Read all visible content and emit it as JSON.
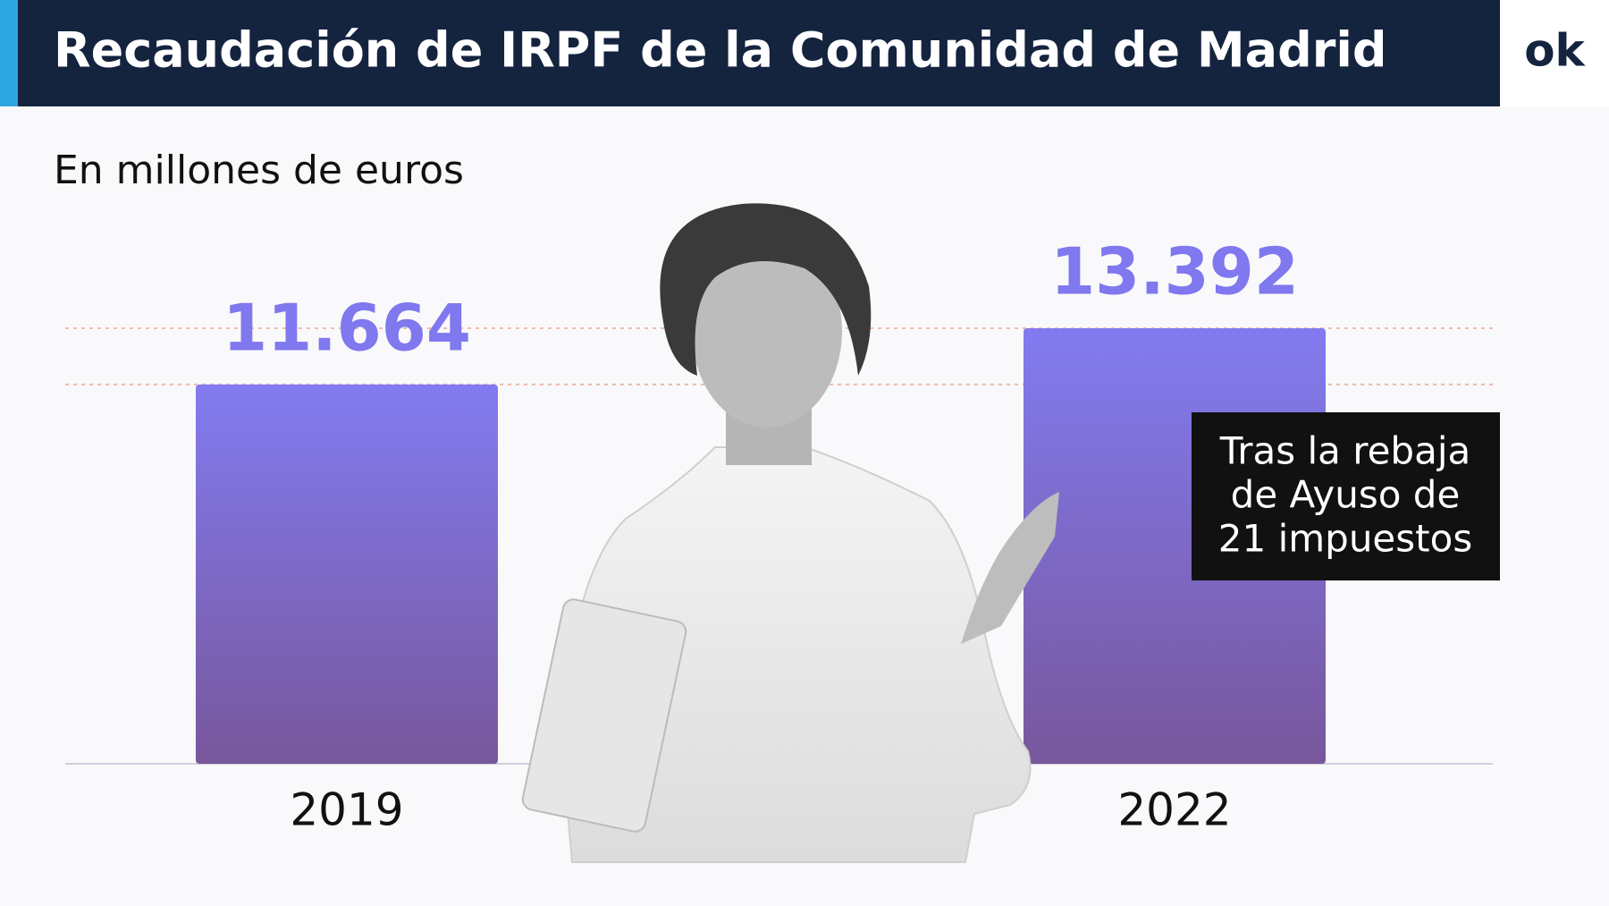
{
  "chart_data": {
    "type": "bar",
    "title": "Recaudación de IRPF de la Comunidad de Madrid",
    "subtitle": "En millones de euros",
    "categories": [
      "2019",
      "2022"
    ],
    "values": [
      11664,
      13392
    ],
    "value_labels": [
      "11.664",
      "13.392"
    ],
    "color": "#7f78ee",
    "annotation": [
      "Tras la rebaja",
      "de Ayuso de",
      "21 impuestos"
    ],
    "logo": "ok"
  }
}
